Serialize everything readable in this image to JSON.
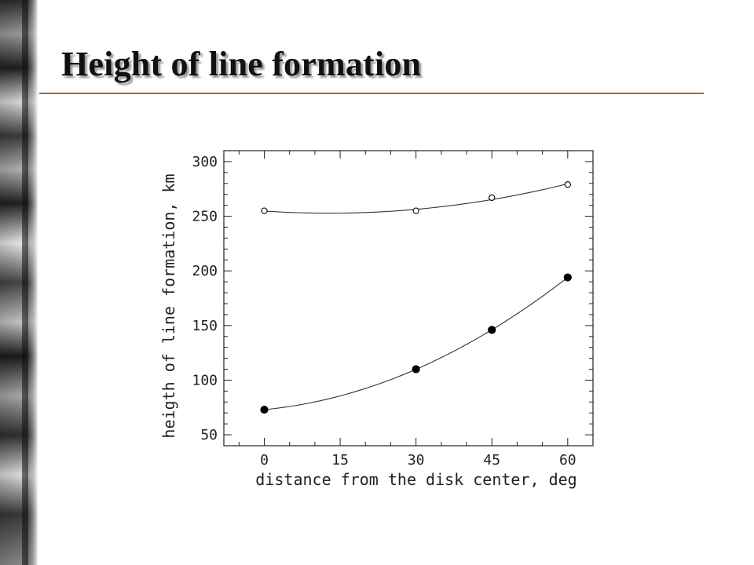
{
  "slide": {
    "title": "Height of line formation",
    "accent_color": "#b5612f"
  },
  "chart_data": {
    "type": "scatter",
    "title": "",
    "xlabel": "distance from the disk center, deg",
    "ylabel": "heigth of line formation, km",
    "xlim": [
      -8,
      65
    ],
    "ylim": [
      40,
      310
    ],
    "x_ticks": [
      0,
      15,
      30,
      45,
      60
    ],
    "y_ticks": [
      50,
      100,
      150,
      200,
      250,
      300
    ],
    "grid": false,
    "legend": "none",
    "series": [
      {
        "marker": "open-circle",
        "x": [
          0,
          30,
          45,
          60
        ],
        "y": [
          255,
          255,
          267,
          279
        ],
        "fit_curve": true
      },
      {
        "marker": "filled-circle",
        "x": [
          0,
          30,
          45,
          60
        ],
        "y": [
          73,
          110,
          146,
          194
        ],
        "fit_curve": true
      }
    ]
  }
}
